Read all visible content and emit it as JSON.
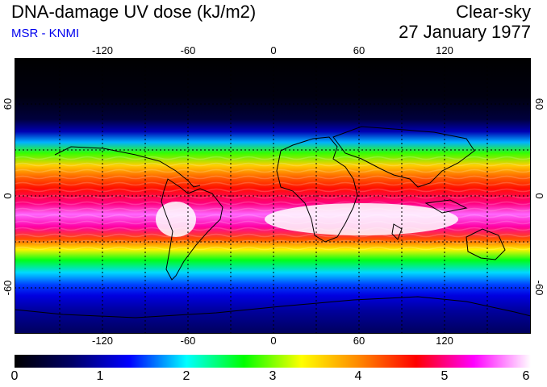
{
  "header": {
    "title": "DNA-damage UV dose (kJ/m2)",
    "subtitle": "MSR - KNMI",
    "sky_condition": "Clear-sky",
    "date": "27 January 1977"
  },
  "map": {
    "longitude_ticks": [
      "-120",
      "-60",
      "0",
      "60",
      "120"
    ],
    "latitude_ticks": [
      "60",
      "0",
      "-60"
    ],
    "field_bands": [
      {
        "lat_center": 90,
        "dose": 0.0
      },
      {
        "lat_center": 65,
        "dose": 0.1
      },
      {
        "lat_center": 50,
        "dose": 0.4
      },
      {
        "lat_center": 42,
        "dose": 1.0
      },
      {
        "lat_center": 35,
        "dose": 1.8
      },
      {
        "lat_center": 28,
        "dose": 2.8
      },
      {
        "lat_center": 20,
        "dose": 3.6
      },
      {
        "lat_center": 12,
        "dose": 4.2
      },
      {
        "lat_center": 5,
        "dose": 4.6
      },
      {
        "lat_center": -5,
        "dose": 5.0
      },
      {
        "lat_center": -12,
        "dose": 5.6
      },
      {
        "lat_center": -20,
        "dose": 5.1
      },
      {
        "lat_center": -28,
        "dose": 4.3
      },
      {
        "lat_center": -35,
        "dose": 3.4
      },
      {
        "lat_center": -42,
        "dose": 2.6
      },
      {
        "lat_center": -50,
        "dose": 1.9
      },
      {
        "lat_center": -58,
        "dose": 1.5
      },
      {
        "lat_center": -65,
        "dose": 1.2
      },
      {
        "lat_center": -75,
        "dose": 0.9
      },
      {
        "lat_center": -90,
        "dose": 0.6
      }
    ]
  },
  "colorbar": {
    "labels": [
      "0",
      "1",
      "2",
      "3",
      "4",
      "5",
      "6"
    ],
    "colors": [
      "#000000",
      "#000066",
      "#0000ff",
      "#00ffff",
      "#00ff00",
      "#ffff00",
      "#ff8800",
      "#ff0000",
      "#ff00ff",
      "#ffffff"
    ]
  }
}
